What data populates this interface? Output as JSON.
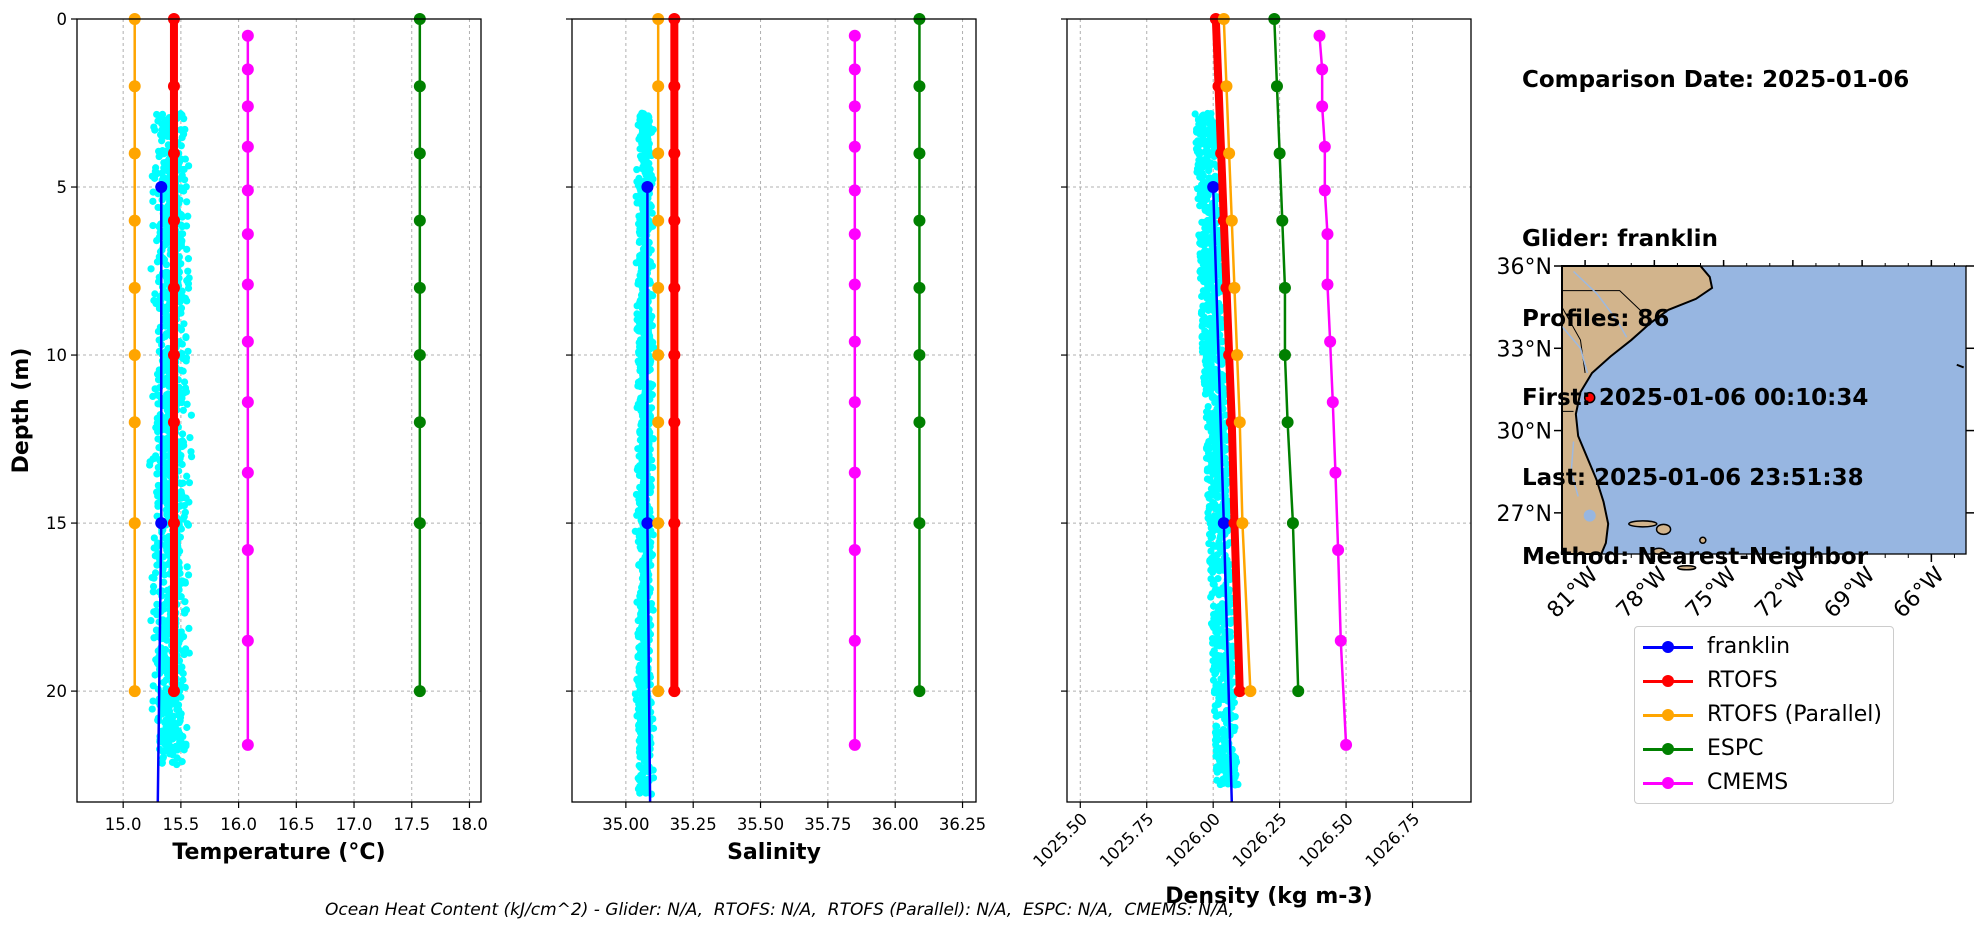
{
  "info": {
    "date_line": "Comparison Date: 2025-01-06",
    "glider_line": "Glider: franklin",
    "profiles_line": "Profiles: 86",
    "first_line": "First: 2025-01-06 00:10:34",
    "last_line": "Last: 2025-01-06 23:51:38",
    "method_line": "Method: Nearest-Neighbor"
  },
  "footer": "Ocean Heat Content (kJ/cm^2) - Glider: N/A,  RTOFS: N/A,  RTOFS (Parallel): N/A,  ESPC: N/A,  CMEMS: N/A,",
  "colors": {
    "franklin": "#0000ff",
    "rtofs": "#ff0000",
    "rtofs_parallel": "#ffa500",
    "espc": "#008000",
    "cmems": "#ff00ff",
    "scatter": "#00ffff",
    "land": "#d2b48c",
    "ocean": "#97b6e1"
  },
  "legend": [
    {
      "label": "franklin",
      "color": "#0000ff"
    },
    {
      "label": "RTOFS",
      "color": "#ff0000"
    },
    {
      "label": "RTOFS (Parallel)",
      "color": "#ffa500"
    },
    {
      "label": "ESPC",
      "color": "#008000"
    },
    {
      "label": "CMEMS",
      "color": "#ff00ff"
    }
  ],
  "chart_data": [
    {
      "type": "line",
      "xlabel": "Temperature (°C)",
      "ylabel": "Depth (m)",
      "xlim": [
        14.6,
        18.1
      ],
      "ylim": [
        23.3,
        0
      ],
      "xticks": [
        "15.0",
        "15.5",
        "16.0",
        "16.5",
        "17.0",
        "17.5",
        "18.0"
      ],
      "yticks": [
        "0",
        "5",
        "10",
        "15",
        "20"
      ],
      "grid": true,
      "glider_scatter": {
        "x_range": [
          15.2,
          15.62
        ],
        "depth_range": [
          2.8,
          22.2
        ]
      },
      "series": [
        {
          "name": "franklin",
          "depth": [
            5,
            15,
            23.3
          ],
          "values": [
            15.33,
            15.33,
            15.3
          ]
        },
        {
          "name": "RTOFS",
          "depth": [
            0,
            2,
            4,
            6,
            8,
            10,
            12,
            15,
            20
          ],
          "values": [
            15.44,
            15.44,
            15.44,
            15.44,
            15.44,
            15.44,
            15.44,
            15.44,
            15.44
          ]
        },
        {
          "name": "RTOFS (Parallel)",
          "depth": [
            0,
            2,
            4,
            6,
            8,
            10,
            12,
            15,
            20
          ],
          "values": [
            15.1,
            15.1,
            15.1,
            15.1,
            15.1,
            15.1,
            15.1,
            15.1,
            15.1
          ]
        },
        {
          "name": "ESPC",
          "depth": [
            0,
            2,
            4,
            6,
            8,
            10,
            12,
            15,
            20
          ],
          "values": [
            17.57,
            17.57,
            17.57,
            17.57,
            17.57,
            17.57,
            17.57,
            17.57,
            17.57
          ]
        },
        {
          "name": "CMEMS",
          "depth": [
            0.5,
            1.5,
            2.6,
            3.8,
            5.1,
            6.4,
            7.9,
            9.6,
            11.4,
            13.5,
            15.8,
            18.5,
            21.6
          ],
          "values": [
            16.08,
            16.08,
            16.08,
            16.08,
            16.08,
            16.08,
            16.08,
            16.08,
            16.08,
            16.08,
            16.08,
            16.08,
            16.08
          ]
        }
      ]
    },
    {
      "type": "line",
      "xlabel": "Salinity",
      "xlim": [
        34.8,
        36.3
      ],
      "ylim": [
        23.3,
        0
      ],
      "xticks": [
        "35.00",
        "35.25",
        "35.50",
        "35.75",
        "36.00",
        "36.25"
      ],
      "grid": true,
      "glider_scatter": {
        "x_range": [
          35.03,
          35.11
        ],
        "depth_range": [
          2.8,
          23.1
        ]
      },
      "series": [
        {
          "name": "franklin",
          "depth": [
            5,
            15,
            23.3
          ],
          "values": [
            35.08,
            35.08,
            35.09
          ]
        },
        {
          "name": "RTOFS",
          "depth": [
            0,
            2,
            4,
            6,
            8,
            10,
            12,
            15,
            20
          ],
          "values": [
            35.18,
            35.18,
            35.18,
            35.18,
            35.18,
            35.18,
            35.18,
            35.18,
            35.18
          ]
        },
        {
          "name": "RTOFS (Parallel)",
          "depth": [
            0,
            2,
            4,
            6,
            8,
            10,
            12,
            15,
            20
          ],
          "values": [
            35.12,
            35.12,
            35.12,
            35.12,
            35.12,
            35.12,
            35.12,
            35.12,
            35.12
          ]
        },
        {
          "name": "ESPC",
          "depth": [
            0,
            2,
            4,
            6,
            8,
            10,
            12,
            15,
            20
          ],
          "values": [
            36.09,
            36.09,
            36.09,
            36.09,
            36.09,
            36.09,
            36.09,
            36.09,
            36.09
          ]
        },
        {
          "name": "CMEMS",
          "depth": [
            0.5,
            1.5,
            2.6,
            3.8,
            5.1,
            6.4,
            7.9,
            9.6,
            11.4,
            13.5,
            15.8,
            18.5,
            21.6
          ],
          "values": [
            35.85,
            35.85,
            35.85,
            35.85,
            35.85,
            35.85,
            35.85,
            35.85,
            35.85,
            35.85,
            35.85,
            35.85,
            35.85
          ]
        }
      ]
    },
    {
      "type": "line",
      "xlabel": "Density (kg m-3)",
      "xlim": [
        1025.45,
        1026.97
      ],
      "ylim": [
        23.3,
        0
      ],
      "xticks": [
        "1025.50",
        "1025.75",
        "1026.00",
        "1026.25",
        "1026.50",
        "1026.75"
      ],
      "grid": true,
      "glider_scatter": {
        "x_range": [
          1025.93,
          1026.13
        ],
        "depth_range": [
          2.8,
          22.8
        ]
      },
      "series": [
        {
          "name": "franklin",
          "depth": [
            5,
            15,
            23.3
          ],
          "values": [
            1026.0,
            1026.04,
            1026.07
          ]
        },
        {
          "name": "RTOFS",
          "depth": [
            0,
            2,
            4,
            6,
            8,
            10,
            12,
            15,
            20
          ],
          "values": [
            1026.01,
            1026.02,
            1026.03,
            1026.04,
            1026.05,
            1026.06,
            1026.07,
            1026.08,
            1026.1
          ]
        },
        {
          "name": "RTOFS (Parallel)",
          "depth": [
            0,
            2,
            4,
            6,
            8,
            10,
            12,
            15,
            20
          ],
          "values": [
            1026.04,
            1026.05,
            1026.06,
            1026.07,
            1026.08,
            1026.09,
            1026.1,
            1026.11,
            1026.14
          ]
        },
        {
          "name": "ESPC",
          "depth": [
            0,
            2,
            4,
            6,
            8,
            10,
            12,
            15,
            20
          ],
          "values": [
            1026.23,
            1026.24,
            1026.25,
            1026.26,
            1026.27,
            1026.27,
            1026.28,
            1026.3,
            1026.32
          ]
        },
        {
          "name": "CMEMS",
          "depth": [
            0.5,
            1.5,
            2.6,
            3.8,
            5.1,
            6.4,
            7.9,
            9.6,
            11.4,
            13.5,
            15.8,
            18.5,
            21.6
          ],
          "values": [
            1026.4,
            1026.41,
            1026.41,
            1026.42,
            1026.42,
            1026.43,
            1026.43,
            1026.44,
            1026.45,
            1026.46,
            1026.47,
            1026.48,
            1026.5
          ]
        }
      ]
    }
  ],
  "map": {
    "lon_ticks": [
      "81°W",
      "78°W",
      "75°W",
      "72°W",
      "69°W",
      "66°W"
    ],
    "lat_ticks": [
      "36°N",
      "33°N",
      "30°N",
      "27°N"
    ],
    "lon_range": [
      -82.0,
      -64.5
    ],
    "lat_range": [
      25.5,
      36.0
    ],
    "glider_position": {
      "lon": -80.8,
      "lat": 31.2
    }
  }
}
